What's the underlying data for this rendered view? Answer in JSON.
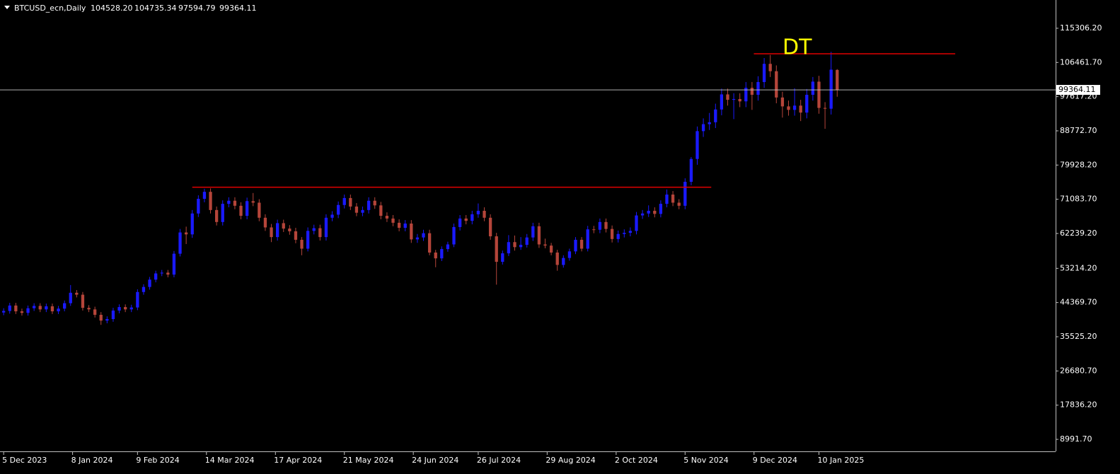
{
  "chart_data": {
    "type": "candlestick",
    "header": {
      "symbol": "BTCUSD_ecn,Daily",
      "ohlc": [
        "104528.20",
        "104735.34",
        "97594.79",
        "99364.11"
      ]
    },
    "up_color": "#1a1aff",
    "down_color": "#b5453a",
    "ohlc": [
      [
        41800,
        42900,
        41100,
        42200
      ],
      [
        42200,
        44300,
        41500,
        43600
      ],
      [
        43600,
        44300,
        41400,
        42100
      ],
      [
        42100,
        42800,
        41000,
        41700
      ],
      [
        41700,
        43600,
        41000,
        42900
      ],
      [
        42900,
        44200,
        42200,
        43500
      ],
      [
        43500,
        44200,
        41900,
        42600
      ],
      [
        42600,
        44100,
        41900,
        43400
      ],
      [
        43400,
        44100,
        41400,
        42100
      ],
      [
        42100,
        43500,
        41400,
        42800
      ],
      [
        42800,
        44900,
        42100,
        44200
      ],
      [
        44200,
        48900,
        43500,
        46900
      ],
      [
        46900,
        47600,
        45700,
        46400
      ],
      [
        46400,
        47100,
        42300,
        43000
      ],
      [
        43000,
        43700,
        41900,
        42600
      ],
      [
        42600,
        43300,
        40500,
        41200
      ],
      [
        41200,
        41900,
        38600,
        39700
      ],
      [
        39700,
        40800,
        39000,
        40100
      ],
      [
        40100,
        43000,
        39400,
        42300
      ],
      [
        42300,
        43900,
        41600,
        43200
      ],
      [
        43200,
        43900,
        41900,
        42600
      ],
      [
        42600,
        43800,
        41900,
        43100
      ],
      [
        43100,
        47800,
        42400,
        47100
      ],
      [
        47100,
        49100,
        46400,
        48400
      ],
      [
        48400,
        51000,
        47700,
        50300
      ],
      [
        50300,
        52600,
        49600,
        51900
      ],
      [
        51900,
        52800,
        51200,
        52100
      ],
      [
        52100,
        52800,
        50900,
        51600
      ],
      [
        51600,
        57700,
        50900,
        57000
      ],
      [
        57000,
        63400,
        56300,
        62500
      ],
      [
        62500,
        64000,
        59500,
        62000
      ],
      [
        62000,
        68300,
        61100,
        67400
      ],
      [
        67400,
        72100,
        66500,
        71200
      ],
      [
        71200,
        73800,
        70300,
        73000
      ],
      [
        73000,
        73900,
        67400,
        68300
      ],
      [
        68300,
        69200,
        64300,
        65200
      ],
      [
        65200,
        70800,
        64300,
        69900
      ],
      [
        69900,
        71600,
        69000,
        70700
      ],
      [
        70700,
        71600,
        68500,
        69400
      ],
      [
        69400,
        70300,
        65900,
        66800
      ],
      [
        66800,
        71500,
        65900,
        70600
      ],
      [
        70600,
        72700,
        69300,
        70200
      ],
      [
        70200,
        71100,
        65400,
        66300
      ],
      [
        66300,
        67200,
        62900,
        63800
      ],
      [
        63800,
        64700,
        60000,
        61300
      ],
      [
        61300,
        65800,
        60400,
        64900
      ],
      [
        64900,
        65800,
        62600,
        63500
      ],
      [
        63500,
        64400,
        61900,
        62800
      ],
      [
        62800,
        63700,
        59700,
        60600
      ],
      [
        60600,
        61300,
        56600,
        58300
      ],
      [
        58300,
        63800,
        57600,
        62900
      ],
      [
        62900,
        64500,
        62000,
        63600
      ],
      [
        63600,
        64500,
        60400,
        61300
      ],
      [
        61300,
        67200,
        60400,
        66300
      ],
      [
        66300,
        68000,
        65400,
        67100
      ],
      [
        67100,
        70500,
        66200,
        69600
      ],
      [
        69600,
        72300,
        68700,
        71400
      ],
      [
        71400,
        72300,
        68300,
        69200
      ],
      [
        69200,
        70100,
        66700,
        67600
      ],
      [
        67600,
        69200,
        66700,
        68300
      ],
      [
        68300,
        71600,
        67400,
        70700
      ],
      [
        70700,
        71600,
        68600,
        69500
      ],
      [
        69500,
        70400,
        65900,
        66800
      ],
      [
        66800,
        67700,
        65200,
        66100
      ],
      [
        66100,
        67000,
        64100,
        65000
      ],
      [
        65000,
        65900,
        62800,
        63700
      ],
      [
        63700,
        65700,
        62800,
        64800
      ],
      [
        64800,
        65700,
        59800,
        60700
      ],
      [
        60700,
        62100,
        59800,
        61200
      ],
      [
        61200,
        63200,
        60300,
        62300
      ],
      [
        62300,
        63200,
        56600,
        57300
      ],
      [
        57300,
        58000,
        53500,
        55800
      ],
      [
        55800,
        58900,
        55100,
        58200
      ],
      [
        58200,
        60100,
        57500,
        59400
      ],
      [
        59400,
        64800,
        58700,
        63900
      ],
      [
        63900,
        67000,
        63000,
        66100
      ],
      [
        66100,
        67000,
        64600,
        65500
      ],
      [
        65500,
        68100,
        64600,
        67200
      ],
      [
        67200,
        70000,
        66300,
        68100
      ],
      [
        68100,
        69000,
        65400,
        66300
      ],
      [
        66300,
        67200,
        60600,
        61500
      ],
      [
        61500,
        62400,
        49000,
        54900
      ],
      [
        54900,
        57800,
        54200,
        57100
      ],
      [
        57100,
        61800,
        56400,
        60000
      ],
      [
        60000,
        61700,
        57800,
        58700
      ],
      [
        58700,
        61300,
        58000,
        59300
      ],
      [
        59300,
        62100,
        58600,
        61200
      ],
      [
        61200,
        65000,
        60300,
        64100
      ],
      [
        64100,
        65000,
        58500,
        59400
      ],
      [
        59400,
        60900,
        58400,
        59100
      ],
      [
        59100,
        59800,
        56600,
        57300
      ],
      [
        57300,
        58000,
        52600,
        54100
      ],
      [
        54100,
        56600,
        53400,
        55900
      ],
      [
        55900,
        58300,
        55200,
        57600
      ],
      [
        57600,
        61300,
        56900,
        60600
      ],
      [
        60600,
        61300,
        57600,
        58300
      ],
      [
        58300,
        64200,
        57600,
        63300
      ],
      [
        63300,
        64200,
        62300,
        63200
      ],
      [
        63200,
        66100,
        62300,
        65200
      ],
      [
        65200,
        66100,
        62500,
        63400
      ],
      [
        63400,
        64300,
        59900,
        60800
      ],
      [
        60800,
        63000,
        59900,
        62100
      ],
      [
        62100,
        63300,
        61200,
        62400
      ],
      [
        62400,
        63800,
        61500,
        62900
      ],
      [
        62900,
        67800,
        62000,
        66900
      ],
      [
        66900,
        68300,
        66000,
        67400
      ],
      [
        67400,
        69500,
        66500,
        68100
      ],
      [
        68100,
        69000,
        66400,
        67300
      ],
      [
        67300,
        70800,
        66400,
        69900
      ],
      [
        69900,
        73600,
        69000,
        72300
      ],
      [
        72300,
        73200,
        69300,
        70200
      ],
      [
        70200,
        71100,
        68500,
        69400
      ],
      [
        69400,
        76500,
        68500,
        75600
      ],
      [
        75600,
        82000,
        74700,
        81500
      ],
      [
        81500,
        89900,
        80000,
        88700
      ],
      [
        88700,
        92000,
        87200,
        90500
      ],
      [
        90500,
        93400,
        89000,
        91000
      ],
      [
        91000,
        95800,
        89500,
        94300
      ],
      [
        94300,
        99700,
        92800,
        98200
      ],
      [
        98200,
        99700,
        95300,
        96800
      ],
      [
        96800,
        98500,
        91800,
        97000
      ],
      [
        97000,
        98500,
        94900,
        96400
      ],
      [
        96400,
        101400,
        94900,
        99900
      ],
      [
        99900,
        101400,
        94200,
        98100
      ],
      [
        98100,
        102900,
        96600,
        101400
      ],
      [
        101400,
        107600,
        99900,
        106100
      ],
      [
        106100,
        108400,
        102700,
        104200
      ],
      [
        104200,
        105700,
        95900,
        97400
      ],
      [
        97400,
        98900,
        92200,
        95100
      ],
      [
        95100,
        96600,
        92700,
        94200
      ],
      [
        94200,
        99800,
        92700,
        95300
      ],
      [
        95300,
        96800,
        91300,
        93500
      ],
      [
        93500,
        99600,
        92000,
        98100
      ],
      [
        98100,
        102700,
        96600,
        101500
      ],
      [
        101500,
        103000,
        93200,
        94700
      ],
      [
        94700,
        96200,
        89300,
        94500
      ],
      [
        94500,
        109200,
        93000,
        104600
      ],
      [
        104528.2,
        104735.34,
        97594.79,
        99364.11
      ]
    ],
    "xlim": [
      -0.6,
      172.9
    ],
    "ylim": [
      5887,
      122612
    ],
    "xticks": [
      {
        "value": 0,
        "label": "5 Dec 2023"
      },
      {
        "value": 11.33,
        "label": "8 Jan 2024"
      },
      {
        "value": 22,
        "label": "9 Feb 2024"
      },
      {
        "value": 33.33,
        "label": "14 Mar 2024"
      },
      {
        "value": 44.67,
        "label": "17 Apr 2024"
      },
      {
        "value": 56,
        "label": "21 May 2024"
      },
      {
        "value": 67.33,
        "label": "24 Jun 2024"
      },
      {
        "value": 78,
        "label": "26 Jul 2024"
      },
      {
        "value": 89.33,
        "label": "29 Aug 2024"
      },
      {
        "value": 100.67,
        "label": "2 Oct 2024"
      },
      {
        "value": 112,
        "label": "5 Nov 2024"
      },
      {
        "value": 123.33,
        "label": "9 Dec 2024"
      },
      {
        "value": 134,
        "label": "10 Jan 2025"
      }
    ],
    "yticks": [
      {
        "value": 115306.2,
        "label": "115306.20"
      },
      {
        "value": 106461.7,
        "label": "106461.70"
      },
      {
        "value": 97617.2,
        "label": "97617.20"
      },
      {
        "value": 88772.7,
        "label": "88772.70"
      },
      {
        "value": 79928.2,
        "label": "79928.20"
      },
      {
        "value": 71083.7,
        "label": "71083.70"
      },
      {
        "value": 62239.2,
        "label": "62239.20"
      },
      {
        "value": 53214.2,
        "label": "53214.20"
      },
      {
        "value": 44369.7,
        "label": "44369.70"
      },
      {
        "value": 35525.2,
        "label": "35525.20"
      },
      {
        "value": 26680.7,
        "label": "26680.70"
      },
      {
        "value": 17836.2,
        "label": "17836.20"
      },
      {
        "value": 8991.7,
        "label": "8991.70"
      }
    ],
    "last_price": {
      "value": 99364.11,
      "label": "99364.11"
    },
    "levels": [
      {
        "value": 74200,
        "from": 31,
        "to": 116.3,
        "color": "#e00000"
      },
      {
        "value": 108700,
        "from": 123.3,
        "to": 156.4,
        "color": "#e00000"
      }
    ],
    "annotation": {
      "text": "DT",
      "color": "#ffff00"
    }
  }
}
